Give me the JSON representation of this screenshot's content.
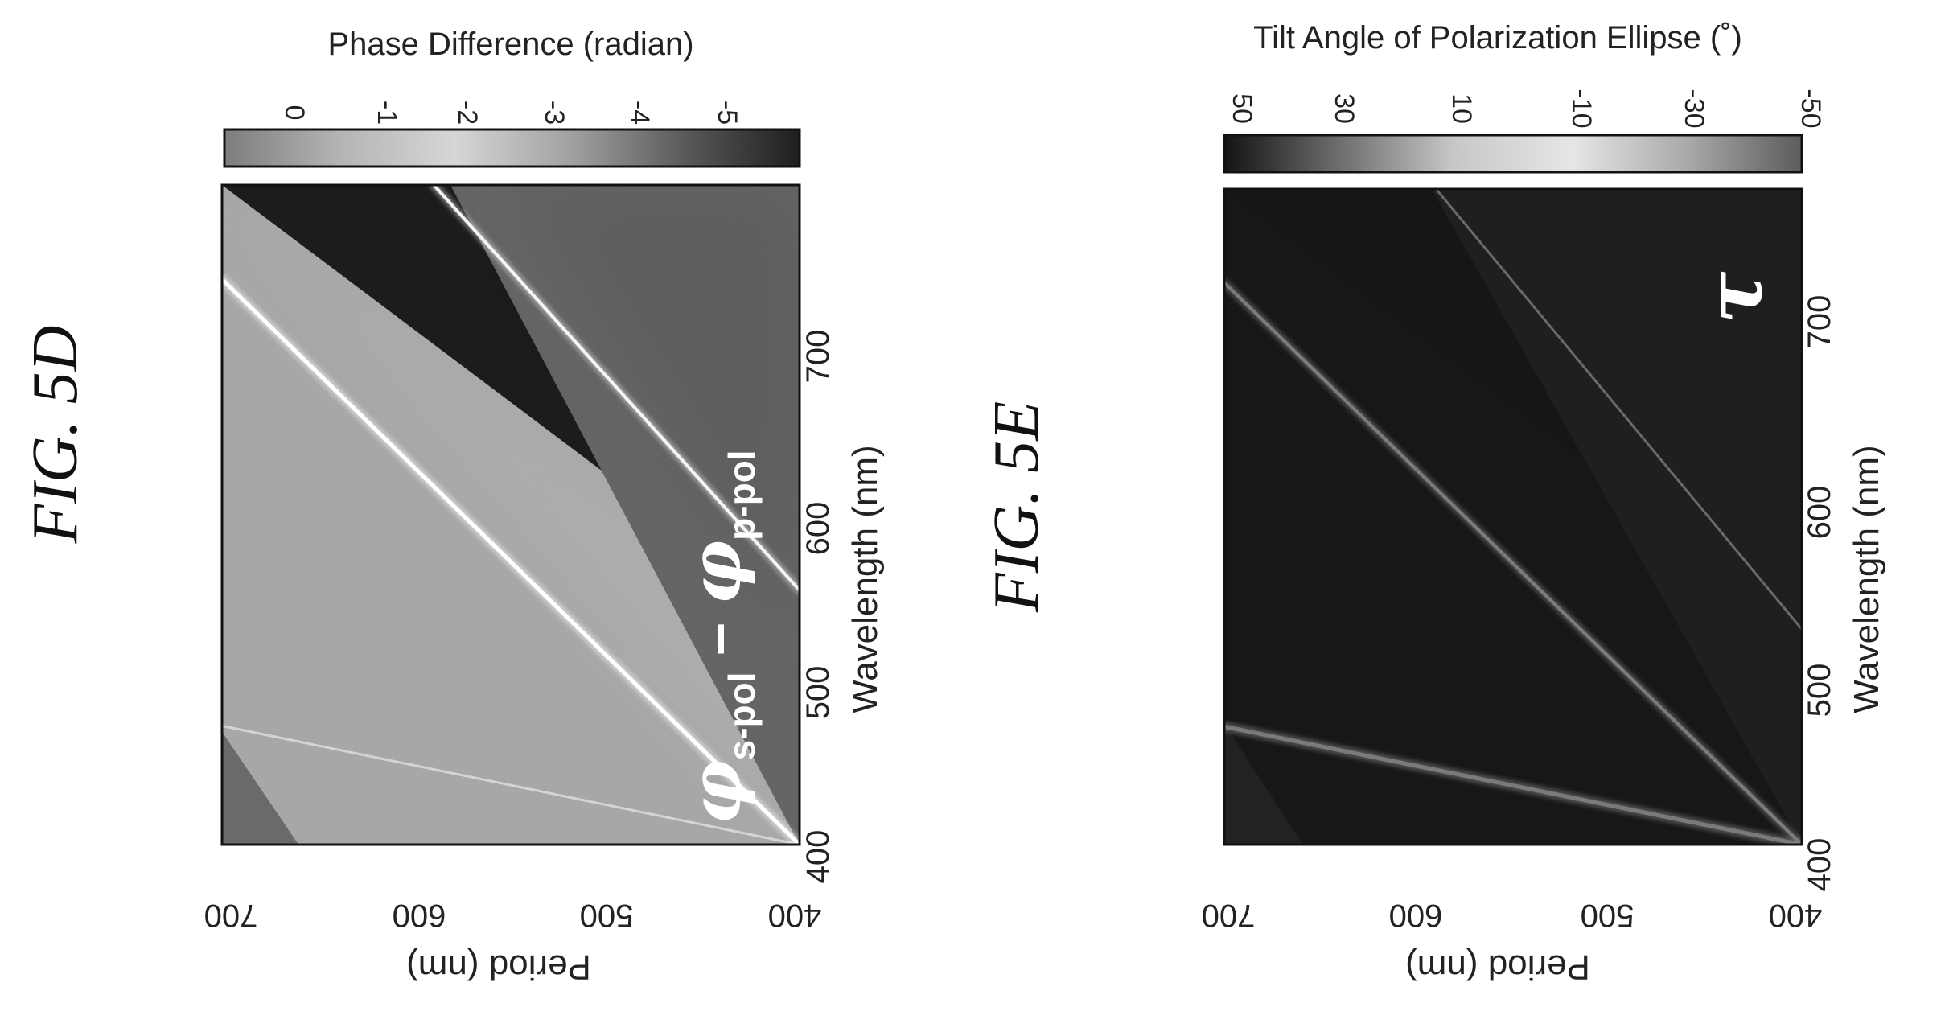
{
  "figures": [
    {
      "label": "FIG. 5D"
    },
    {
      "label": "FIG. 5E"
    }
  ],
  "chart_data": [
    {
      "type": "heatmap",
      "figure": "FIG. 5D",
      "xlabel": "Wavelength (nm)",
      "ylabel": "Period (nm)",
      "xlim": [
        400,
        750
      ],
      "ylim": [
        400,
        700
      ],
      "xticks": [
        "400",
        "500",
        "600",
        "700"
      ],
      "yticks": [
        "400",
        "500",
        "600",
        "700"
      ],
      "colorbar": {
        "label": "Phase Difference (radian)",
        "ticks": [
          "0",
          "-1",
          "-2",
          "-3",
          "-4",
          "-5"
        ],
        "range": [
          0,
          -6
        ],
        "colors": [
          "#7d7d7d",
          "#b4b4b4",
          "#d6d6d6",
          "#a2a2a2",
          "#5a5a5a",
          "#1e1e1e"
        ]
      },
      "annotation": {
        "symbol": "φ",
        "sub1": "s-pol",
        "minus": "−",
        "sub2": "p-pol"
      },
      "features": [
        {
          "name": "lower-anomaly-line",
          "wavelength": [
            400,
            463
          ],
          "period": [
            400,
            700
          ]
        },
        {
          "name": "middle-anomaly-line",
          "wavelength": [
            400,
            700
          ],
          "period": [
            400,
            700
          ]
        },
        {
          "name": "upper-anomaly-line",
          "wavelength": [
            535,
            750
          ],
          "period": [
            400,
            590
          ]
        }
      ]
    },
    {
      "type": "heatmap",
      "figure": "FIG. 5E",
      "xlabel": "Wavelength (nm)",
      "ylabel": "Period (nm)",
      "xlim": [
        400,
        750
      ],
      "ylim": [
        400,
        700
      ],
      "xticks": [
        "400",
        "500",
        "600",
        "700"
      ],
      "yticks": [
        "400",
        "500",
        "600",
        "700"
      ],
      "colorbar": {
        "label": "Tilt Angle of Polarization Ellipse (˚)",
        "ticks": [
          "50",
          "30",
          "10",
          "-10",
          "-30",
          "-50"
        ],
        "range": [
          50,
          -50
        ],
        "colors": [
          "#141414",
          "#6e6e6e",
          "#c8c8c8",
          "#e6e6e6",
          "#aaaaaa",
          "#5c5c5c"
        ]
      },
      "annotation": {
        "symbol": "τ"
      },
      "features": [
        {
          "name": "lower-anomaly-line",
          "wavelength": [
            400,
            463
          ],
          "period": [
            400,
            700
          ]
        },
        {
          "name": "middle-anomaly-line",
          "wavelength": [
            400,
            700
          ],
          "period": [
            400,
            700
          ]
        },
        {
          "name": "upper-anomaly-line",
          "wavelength": [
            515,
            750
          ],
          "period": [
            400,
            590
          ]
        }
      ]
    }
  ]
}
